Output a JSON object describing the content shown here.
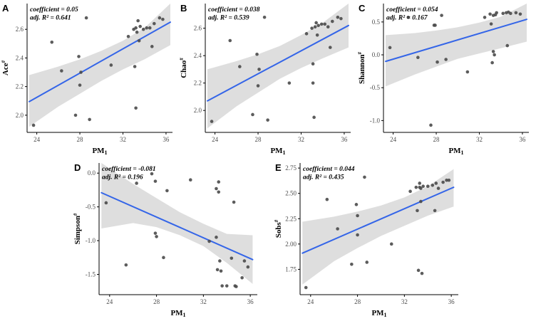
{
  "colors": {
    "regression_line": "#3465e8",
    "confidence_band": "#d6d6d6",
    "point": "#4a4a4a",
    "axis": "#000000",
    "tick_text": "#4d4d4d"
  },
  "chart_data": [
    {
      "type": "scatter",
      "panel_label": "A",
      "annotation": [
        "coefficient = 0.05",
        "adj. R² = 0.641"
      ],
      "xlabel": {
        "base": "PM",
        "sub": "1"
      },
      "ylabel": {
        "base": "Ace",
        "sup": "#"
      },
      "xlim": [
        23.1,
        36.6
      ],
      "ylim": [
        1.88,
        2.78
      ],
      "x_ticks": [
        24,
        28,
        32,
        36
      ],
      "x_tick_labels": [
        "24",
        "28",
        "32",
        "36"
      ],
      "y_ticks": [
        2.0,
        2.2,
        2.4,
        2.6
      ],
      "y_tick_labels": [
        "2.0",
        "2.2",
        "2.4",
        "2.6"
      ],
      "trend": {
        "x": [
          23.3,
          36.4
        ],
        "y": [
          2.095,
          2.65
        ]
      },
      "band": [
        [
          23.3,
          1.92,
          2.28
        ],
        [
          26,
          2.06,
          2.34
        ],
        [
          28,
          2.15,
          2.39
        ],
        [
          30,
          2.24,
          2.45
        ],
        [
          32,
          2.32,
          2.52
        ],
        [
          34,
          2.39,
          2.61
        ],
        [
          36.4,
          2.49,
          2.78
        ]
      ],
      "points": [
        [
          23.7,
          1.93
        ],
        [
          25.4,
          2.51
        ],
        [
          26.3,
          2.31
        ],
        [
          27.6,
          2.0
        ],
        [
          27.9,
          2.41
        ],
        [
          28.0,
          2.21
        ],
        [
          28.1,
          2.3
        ],
        [
          28.6,
          2.68
        ],
        [
          28.9,
          1.97
        ],
        [
          30.9,
          2.35
        ],
        [
          32.5,
          2.55
        ],
        [
          33.0,
          2.6
        ],
        [
          33.1,
          2.34
        ],
        [
          33.2,
          2.05
        ],
        [
          33.2,
          2.61
        ],
        [
          33.3,
          2.58
        ],
        [
          33.4,
          2.66
        ],
        [
          33.5,
          2.52
        ],
        [
          33.6,
          2.62
        ],
        [
          33.9,
          2.6
        ],
        [
          34.2,
          2.61
        ],
        [
          34.5,
          2.61
        ],
        [
          34.7,
          2.48
        ],
        [
          34.9,
          2.64
        ],
        [
          35.4,
          2.68
        ],
        [
          35.7,
          2.67
        ]
      ]
    },
    {
      "type": "scatter",
      "panel_label": "B",
      "annotation": [
        "coefficient = 0.038",
        "adj. R² = 0.539"
      ],
      "xlabel": {
        "base": "PM",
        "sub": "1"
      },
      "ylabel": {
        "base": "Chao",
        "sup": "#"
      },
      "xlim": [
        23.1,
        36.6
      ],
      "ylim": [
        1.84,
        2.78
      ],
      "x_ticks": [
        24,
        28,
        32,
        36
      ],
      "x_tick_labels": [
        "24",
        "28",
        "32",
        "36"
      ],
      "y_ticks": [
        2.0,
        2.2,
        2.4,
        2.6
      ],
      "y_tick_labels": [
        "2.0",
        "2.2",
        "2.4",
        "2.6"
      ],
      "trend": {
        "x": [
          23.3,
          36.4
        ],
        "y": [
          2.07,
          2.62
        ]
      },
      "band": [
        [
          23.3,
          1.87,
          2.3
        ],
        [
          26,
          2.03,
          2.36
        ],
        [
          28,
          2.13,
          2.41
        ],
        [
          30,
          2.23,
          2.47
        ],
        [
          32,
          2.31,
          2.55
        ],
        [
          34,
          2.38,
          2.64
        ],
        [
          36.4,
          2.46,
          2.78
        ]
      ],
      "points": [
        [
          23.7,
          1.92
        ],
        [
          25.4,
          2.51
        ],
        [
          26.3,
          2.32
        ],
        [
          27.5,
          1.97
        ],
        [
          27.9,
          2.41
        ],
        [
          28.0,
          2.18
        ],
        [
          28.1,
          2.3
        ],
        [
          28.6,
          2.68
        ],
        [
          28.9,
          1.93
        ],
        [
          30.9,
          2.2
        ],
        [
          32.5,
          2.56
        ],
        [
          33.0,
          2.6
        ],
        [
          33.1,
          2.34
        ],
        [
          33.1,
          2.2
        ],
        [
          33.2,
          1.95
        ],
        [
          33.3,
          2.61
        ],
        [
          33.4,
          2.64
        ],
        [
          33.5,
          2.55
        ],
        [
          33.6,
          2.62
        ],
        [
          33.9,
          2.63
        ],
        [
          34.2,
          2.63
        ],
        [
          34.5,
          2.61
        ],
        [
          34.7,
          2.46
        ],
        [
          34.9,
          2.65
        ],
        [
          35.4,
          2.68
        ],
        [
          35.7,
          2.67
        ]
      ]
    },
    {
      "type": "scatter",
      "panel_label": "C",
      "annotation": [
        "coefficient = 0.054",
        "adj. R² = 0.167"
      ],
      "xlabel": {
        "base": "PM",
        "sub": "1"
      },
      "ylabel": {
        "base": "Shannon",
        "sup": "#"
      },
      "xlim": [
        23.1,
        36.6
      ],
      "ylim": [
        -1.18,
        0.78
      ],
      "x_ticks": [
        24,
        28,
        32,
        36
      ],
      "x_tick_labels": [
        "24",
        "28",
        "32",
        "36"
      ],
      "y_ticks": [
        -1.0,
        -0.5,
        0.0,
        0.5
      ],
      "y_tick_labels": [
        "-1.0",
        "-0.5",
        "0.0",
        "0.5"
      ],
      "trend": {
        "x": [
          23.3,
          36.4
        ],
        "y": [
          -0.1,
          0.54
        ]
      },
      "band": [
        [
          23.3,
          -0.48,
          0.3
        ],
        [
          26,
          -0.3,
          0.33
        ],
        [
          28,
          -0.18,
          0.37
        ],
        [
          30,
          -0.06,
          0.42
        ],
        [
          32,
          0.02,
          0.49
        ],
        [
          34,
          0.1,
          0.58
        ],
        [
          36.4,
          0.2,
          0.78
        ]
      ],
      "points": [
        [
          23.7,
          0.11
        ],
        [
          25.4,
          0.57
        ],
        [
          26.3,
          -0.04
        ],
        [
          27.5,
          -1.07
        ],
        [
          27.8,
          0.45
        ],
        [
          27.9,
          0.45
        ],
        [
          28.1,
          -0.11
        ],
        [
          28.5,
          0.6
        ],
        [
          28.9,
          -0.07
        ],
        [
          30.9,
          -0.26
        ],
        [
          32.5,
          0.57
        ],
        [
          33.0,
          0.62
        ],
        [
          33.1,
          0.47
        ],
        [
          33.2,
          -0.12
        ],
        [
          33.3,
          0.6
        ],
        [
          33.3,
          0.05
        ],
        [
          33.4,
          0.0
        ],
        [
          33.5,
          0.61
        ],
        [
          33.6,
          0.64
        ],
        [
          34.2,
          0.63
        ],
        [
          34.5,
          0.64
        ],
        [
          34.6,
          0.14
        ],
        [
          34.7,
          0.65
        ],
        [
          34.9,
          0.63
        ],
        [
          35.4,
          0.64
        ],
        [
          35.8,
          0.62
        ]
      ]
    },
    {
      "type": "scatter",
      "panel_label": "D",
      "annotation": [
        "coefficient = -0.081",
        "adj. R² = 0.196"
      ],
      "xlabel": {
        "base": "PM",
        "sub": "1"
      },
      "ylabel": {
        "base": "Simpson",
        "sup": "#"
      },
      "xlim": [
        23.1,
        36.6
      ],
      "ylim": [
        -1.8,
        0.15
      ],
      "x_ticks": [
        24,
        28,
        32,
        36
      ],
      "x_tick_labels": [
        "24",
        "28",
        "32",
        "36"
      ],
      "y_ticks": [
        -1.5,
        -1.0,
        -0.5,
        0.0
      ],
      "y_tick_labels": [
        "-1.5",
        "-1.0",
        "-0.5",
        "0.0"
      ],
      "trend": {
        "x": [
          23.3,
          36.2
        ],
        "y": [
          -0.29,
          -1.28
        ]
      },
      "band": [
        [
          23.3,
          -0.82,
          0.15
        ],
        [
          26,
          -0.74,
          -0.16
        ],
        [
          28,
          -0.8,
          -0.37
        ],
        [
          30,
          -0.92,
          -0.58
        ],
        [
          32,
          -1.08,
          -0.75
        ],
        [
          34,
          -1.33,
          -0.9
        ],
        [
          36.2,
          -1.64,
          -0.92
        ]
      ],
      "points": [
        [
          23.7,
          -0.44
        ],
        [
          25.4,
          -1.36
        ],
        [
          26.3,
          -0.15
        ],
        [
          27.6,
          -0.01
        ],
        [
          27.9,
          -0.12
        ],
        [
          27.9,
          -0.89
        ],
        [
          28.0,
          -0.94
        ],
        [
          28.6,
          -1.25
        ],
        [
          28.9,
          -0.26
        ],
        [
          30.9,
          -0.1
        ],
        [
          32.5,
          -1.01
        ],
        [
          33.1,
          -0.95
        ],
        [
          33.1,
          -0.23
        ],
        [
          33.2,
          -1.43
        ],
        [
          33.3,
          -0.13
        ],
        [
          33.3,
          -0.28
        ],
        [
          33.4,
          -1.3
        ],
        [
          33.5,
          -1.45
        ],
        [
          33.6,
          -1.67
        ],
        [
          34.0,
          -1.67
        ],
        [
          34.4,
          -1.26
        ],
        [
          34.6,
          -0.43
        ],
        [
          34.7,
          -1.67
        ],
        [
          34.8,
          -1.68
        ],
        [
          35.3,
          -1.55
        ],
        [
          35.5,
          -1.3
        ],
        [
          35.8,
          -1.39
        ]
      ]
    },
    {
      "type": "scatter",
      "panel_label": "E",
      "annotation": [
        "coefficient = 0.044",
        "adj. R² = 0.435"
      ],
      "xlabel": {
        "base": "PM",
        "sub": "1"
      },
      "ylabel": {
        "base": "Sobs",
        "sup": "#"
      },
      "xlim": [
        23.1,
        36.6
      ],
      "ylim": [
        1.5,
        2.8
      ],
      "x_ticks": [
        24,
        28,
        32,
        36
      ],
      "x_tick_labels": [
        "24",
        "28",
        "32",
        "36"
      ],
      "y_ticks": [
        1.75,
        2.0,
        2.25,
        2.5,
        2.75
      ],
      "y_tick_labels": [
        "1.75",
        "2.00",
        "2.25",
        "2.50",
        "2.75"
      ],
      "trend": {
        "x": [
          23.3,
          36.2
        ],
        "y": [
          1.91,
          2.56
        ]
      },
      "band": [
        [
          23.3,
          1.6,
          2.22
        ],
        [
          26,
          1.83,
          2.27
        ],
        [
          28,
          1.96,
          2.32
        ],
        [
          30,
          2.08,
          2.38
        ],
        [
          32,
          2.18,
          2.46
        ],
        [
          34,
          2.28,
          2.57
        ],
        [
          36.2,
          2.37,
          2.74
        ]
      ],
      "points": [
        [
          23.6,
          1.57
        ],
        [
          25.4,
          2.44
        ],
        [
          26.3,
          2.15
        ],
        [
          27.5,
          1.8
        ],
        [
          27.9,
          2.39
        ],
        [
          28.0,
          2.28
        ],
        [
          28.0,
          2.09
        ],
        [
          28.6,
          2.66
        ],
        [
          28.8,
          1.82
        ],
        [
          30.9,
          2.0
        ],
        [
          32.5,
          2.52
        ],
        [
          33.0,
          2.56
        ],
        [
          33.1,
          2.33
        ],
        [
          33.2,
          1.74
        ],
        [
          33.3,
          2.6
        ],
        [
          33.3,
          2.56
        ],
        [
          33.4,
          2.55
        ],
        [
          33.4,
          2.42
        ],
        [
          33.5,
          1.71
        ],
        [
          33.6,
          2.57
        ],
        [
          34.0,
          2.57
        ],
        [
          34.4,
          2.58
        ],
        [
          34.6,
          2.33
        ],
        [
          34.7,
          2.6
        ],
        [
          34.9,
          2.55
        ],
        [
          35.3,
          2.61
        ],
        [
          35.6,
          2.63
        ],
        [
          35.8,
          2.63
        ]
      ]
    }
  ]
}
